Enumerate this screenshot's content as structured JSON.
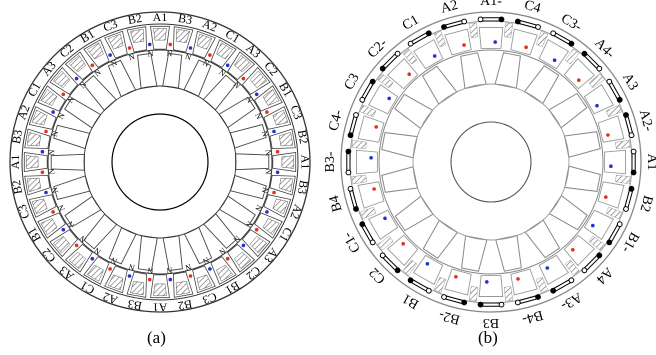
{
  "panel_a": {
    "caption": "(a)",
    "winding_labels": [
      "A1",
      "B3",
      "A2",
      "C1",
      "A3",
      "C2",
      "B1",
      "C3",
      "B2",
      "A1",
      "B3",
      "A2",
      "C1",
      "A3",
      "C2",
      "B1",
      "C3",
      "B2",
      "A1",
      "B3",
      "A2",
      "C1",
      "A3",
      "C2",
      "B1",
      "C3",
      "B2",
      "A1",
      "B3",
      "A2",
      "C1",
      "A3",
      "C2",
      "B1",
      "C3",
      "B2"
    ],
    "pole_label": "N"
  },
  "panel_b": {
    "caption": "(b)",
    "winding_labels": [
      "A1-",
      "C4",
      "C3-",
      "A4-",
      "A3",
      "A2-",
      "A1",
      "B2",
      "B1-",
      "A4",
      "A3-",
      "B4-",
      "B3",
      "B2-",
      "B1",
      "C2",
      "C1-",
      "B4",
      "B3-",
      "C4-",
      "C3",
      "C2-",
      "C1",
      "A2"
    ]
  },
  "colors": {
    "red_marker": "#e0301e",
    "blue_marker": "#2233cc",
    "hatch": "#8a8a8a",
    "line": "#333333"
  }
}
